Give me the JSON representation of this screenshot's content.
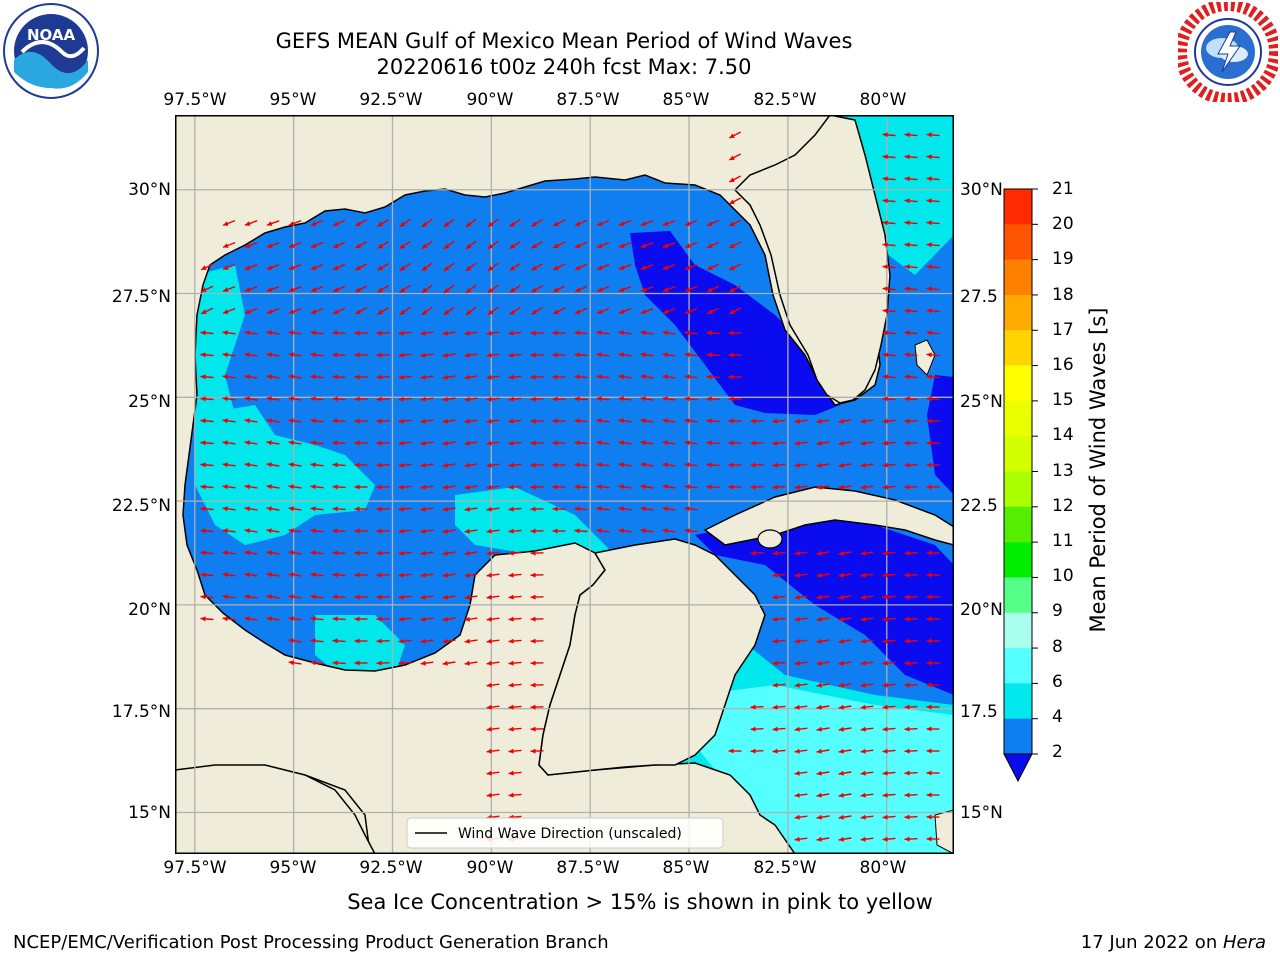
{
  "title": {
    "line1": "GEFS MEAN Gulf of Mexico Mean Period of Wind Waves",
    "line2": "20220616 t00z 240h fcst   Max: 7.50"
  },
  "map": {
    "lon_labels": [
      "97.5°W",
      "95°W",
      "92.5°W",
      "90°W",
      "87.5°W",
      "85°W",
      "82.5°W",
      "80°W"
    ],
    "lat_labels_left": [
      "30°N",
      "27.5°N",
      "25°N",
      "22.5°N",
      "20°N",
      "17.5°N",
      "15°N"
    ],
    "lat_labels_right": [
      "30°N",
      "27.5",
      "25°N",
      "22.5",
      "20°N",
      "17.5",
      "15°N"
    ],
    "legend_label": "Wind Wave Direction (unscaled)",
    "colors": {
      "land": "#efedd9",
      "period_2_4": "#0f7ef0",
      "period_4_6": "#00e8ec",
      "period_below_2": "#0b0bf0",
      "arrow": "#ee0000",
      "grid": "#b0b0b0"
    }
  },
  "colorbar": {
    "label": "Mean Period of Wind Waves [s]",
    "ticks": [
      "21",
      "20",
      "19",
      "18",
      "17",
      "16",
      "15",
      "14",
      "13",
      "12",
      "11",
      "10",
      "9",
      "8",
      "6",
      "4",
      "2"
    ],
    "band_colors": [
      "#ff0000",
      "#ff2a00",
      "#ff5500",
      "#ff8000",
      "#ffaa00",
      "#ffd400",
      "#ffff00",
      "#eaff00",
      "#d4ff00",
      "#aaff00",
      "#55ee00",
      "#00ee00",
      "#55ff88",
      "#aaffee",
      "#55ffff",
      "#00e8ec",
      "#0f7ef0"
    ],
    "extend_color": "#0b0bf0"
  },
  "chart_data": {
    "type": "heatmap",
    "title": "GEFS MEAN Gulf of Mexico Mean Period of Wind Waves",
    "subtitle": "20220616 t00z 240h fcst   Max: 7.50",
    "xlabel": "",
    "ylabel": "",
    "xlim": [
      -98.0,
      -78.3
    ],
    "ylim": [
      14.0,
      31.8
    ],
    "colorbar_label": "Mean Period of Wind Waves [s]",
    "levels": [
      2,
      4,
      6,
      8,
      9,
      10,
      11,
      12,
      13,
      14,
      15,
      16,
      17,
      18,
      19,
      20,
      21
    ],
    "max": 7.5,
    "legend": "Wind Wave Direction (unscaled)"
  },
  "note": "Sea Ice Concentration > 15% is shown in pink to yellow",
  "footer": {
    "left": "NCEP/EMC/Verification Post Processing Product Generation Branch",
    "date": "17 Jun 2022 on ",
    "machine": "Hera"
  },
  "logos": {
    "noaa": "NOAA",
    "noaa_ring": "NATIONAL OCEANIC AND ATMOSPHERIC ADMINISTRATION · U.S. DEPARTMENT OF COMMERCE",
    "nws_ring": "NATIONAL WEATHER SERVICE"
  }
}
